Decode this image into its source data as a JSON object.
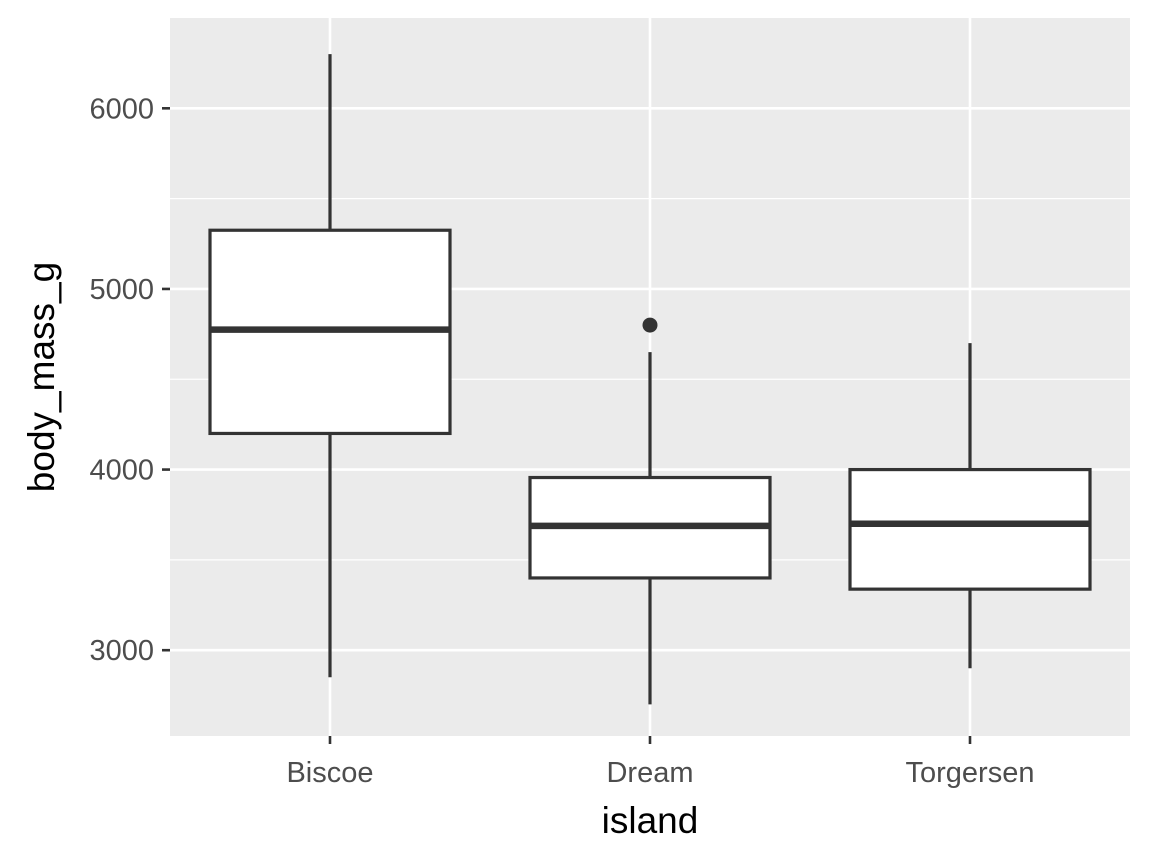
{
  "chart_data": {
    "type": "boxplot",
    "xlabel": "island",
    "ylabel": "body_mass_g",
    "categories": [
      "Biscoe",
      "Dream",
      "Torgersen"
    ],
    "ylim": [
      2525,
      6500
    ],
    "y_ticks": [
      3000,
      4000,
      5000,
      6000
    ],
    "y_tick_labels": [
      "3000",
      "4000",
      "5000",
      "6000"
    ],
    "grid": true,
    "legend": "none",
    "boxes": [
      {
        "category": "Biscoe",
        "min": 2850,
        "q1": 4200,
        "median": 4775,
        "q3": 5325,
        "max": 6300,
        "outliers": []
      },
      {
        "category": "Dream",
        "min": 2700,
        "q1": 3400,
        "median": 3688,
        "q3": 3956,
        "max": 4650,
        "outliers": [
          4800
        ]
      },
      {
        "category": "Torgersen",
        "min": 2900,
        "q1": 3338,
        "median": 3700,
        "q3": 4000,
        "max": 4700,
        "outliers": []
      }
    ],
    "colors": {
      "panel": "#ebebeb",
      "grid": "#ffffff",
      "box_fill": "#ffffff",
      "box_stroke": "#333333",
      "axis_ticks": "#333333"
    }
  }
}
